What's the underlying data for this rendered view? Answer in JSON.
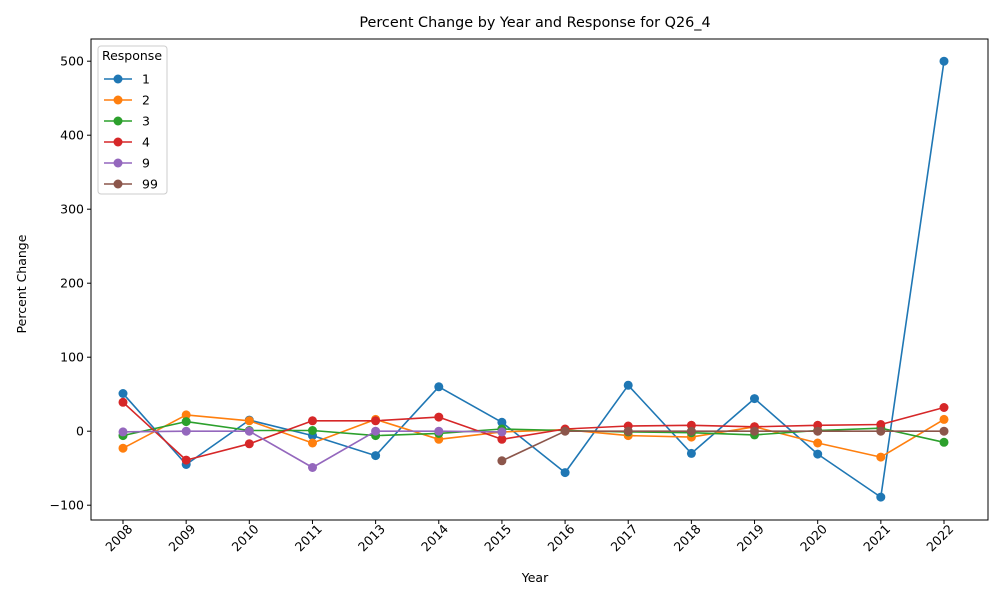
{
  "chart_data": {
    "type": "line",
    "title": "Percent Change by Year and Response for Q26_4",
    "xlabel": "Year",
    "ylabel": "Percent Change",
    "categories": [
      "2008",
      "2009",
      "2010",
      "2011",
      "2013",
      "2014",
      "2015",
      "2016",
      "2017",
      "2018",
      "2019",
      "2020",
      "2021",
      "2022"
    ],
    "ylim": [
      -120,
      530
    ],
    "yticks": [
      -100,
      0,
      100,
      200,
      300,
      400,
      500
    ],
    "grid": false,
    "legend": {
      "title": "Response",
      "position": "top-left"
    },
    "series": [
      {
        "name": "1",
        "color": "#1f77b4",
        "values": [
          51,
          -45,
          15,
          -6,
          -33,
          60,
          12,
          -56,
          62,
          -30,
          44,
          -31,
          -89,
          500
        ]
      },
      {
        "name": "2",
        "color": "#ff7f0e",
        "values": [
          -23,
          22,
          14,
          -16,
          16,
          -11,
          -1,
          2,
          -6,
          -8,
          6,
          -16,
          -35,
          16
        ]
      },
      {
        "name": "3",
        "color": "#2ca02c",
        "values": [
          -6,
          13,
          1,
          1,
          -6,
          -3,
          3,
          1,
          -1,
          -2,
          -5,
          1,
          4,
          -15
        ]
      },
      {
        "name": "4",
        "color": "#d62728",
        "values": [
          39,
          -39,
          -17,
          14,
          14,
          19,
          -11,
          3,
          7,
          8,
          6,
          8,
          9,
          32
        ]
      },
      {
        "name": "9",
        "color": "#9467bd",
        "values": [
          -1,
          0,
          0,
          -49,
          0,
          0,
          -1,
          null,
          null,
          null,
          null,
          null,
          null,
          null
        ]
      },
      {
        "name": "99",
        "color": "#8c564b",
        "values": [
          null,
          null,
          null,
          null,
          null,
          null,
          -40,
          0,
          0,
          0,
          0,
          0,
          0,
          0
        ]
      }
    ]
  }
}
